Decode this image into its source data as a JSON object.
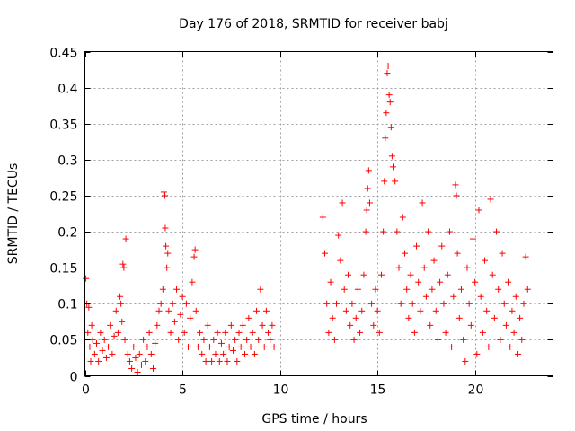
{
  "chart_data": {
    "type": "scatter",
    "title": "Day 176 of 2018, SRMTID for receiver babj",
    "xlabel": "GPS time / hours",
    "ylabel": "SRMTID / TECUs",
    "xlim": [
      0,
      24
    ],
    "ylim": [
      0,
      0.45
    ],
    "xticks": [
      0,
      5,
      10,
      15,
      20
    ],
    "xtick_labels": [
      "0",
      "5",
      "10",
      "15",
      "20"
    ],
    "yticks": [
      0,
      0.05,
      0.1,
      0.15,
      0.2,
      0.25,
      0.3,
      0.35,
      0.4,
      0.45
    ],
    "ytick_labels": [
      "0",
      "0.05",
      "0.1",
      "0.15",
      "0.2",
      "0.25",
      "0.3",
      "0.35",
      "0.4",
      "0.45"
    ],
    "grid": true,
    "marker": "+",
    "color": "#ff0000",
    "series": [
      {
        "name": "SRMTID",
        "points": [
          [
            0.05,
            0.135
          ],
          [
            0.1,
            0.1
          ],
          [
            0.15,
            0.06
          ],
          [
            0.2,
            0.095
          ],
          [
            0.25,
            0.04
          ],
          [
            0.3,
            0.02
          ],
          [
            0.35,
            0.07
          ],
          [
            0.4,
            0.05
          ],
          [
            0.5,
            0.03
          ],
          [
            0.6,
            0.045
          ],
          [
            0.7,
            0.02
          ],
          [
            0.8,
            0.06
          ],
          [
            0.9,
            0.035
          ],
          [
            1.0,
            0.05
          ],
          [
            1.1,
            0.025
          ],
          [
            1.2,
            0.04
          ],
          [
            1.3,
            0.07
          ],
          [
            1.4,
            0.03
          ],
          [
            1.5,
            0.055
          ],
          [
            1.6,
            0.09
          ],
          [
            1.7,
            0.06
          ],
          [
            1.8,
            0.11
          ],
          [
            1.85,
            0.1
          ],
          [
            1.9,
            0.075
          ],
          [
            1.95,
            0.155
          ],
          [
            2.0,
            0.15
          ],
          [
            2.05,
            0.05
          ],
          [
            2.1,
            0.19
          ],
          [
            2.2,
            0.03
          ],
          [
            2.3,
            0.02
          ],
          [
            2.4,
            0.01
          ],
          [
            2.5,
            0.04
          ],
          [
            2.6,
            0.025
          ],
          [
            2.7,
            0.005
          ],
          [
            2.8,
            0.03
          ],
          [
            2.9,
            0.015
          ],
          [
            3.0,
            0.05
          ],
          [
            3.1,
            0.02
          ],
          [
            3.2,
            0.04
          ],
          [
            3.3,
            0.06
          ],
          [
            3.4,
            0.03
          ],
          [
            3.5,
            0.01
          ],
          [
            3.6,
            0.045
          ],
          [
            3.7,
            0.07
          ],
          [
            3.8,
            0.09
          ],
          [
            3.9,
            0.1
          ],
          [
            4.0,
            0.12
          ],
          [
            4.05,
            0.255
          ],
          [
            4.1,
            0.25
          ],
          [
            4.12,
            0.205
          ],
          [
            4.15,
            0.18
          ],
          [
            4.2,
            0.15
          ],
          [
            4.25,
            0.17
          ],
          [
            4.3,
            0.09
          ],
          [
            4.4,
            0.06
          ],
          [
            4.5,
            0.1
          ],
          [
            4.6,
            0.075
          ],
          [
            4.7,
            0.12
          ],
          [
            4.8,
            0.05
          ],
          [
            4.9,
            0.085
          ],
          [
            5.0,
            0.11
          ],
          [
            5.1,
            0.06
          ],
          [
            5.2,
            0.1
          ],
          [
            5.3,
            0.04
          ],
          [
            5.4,
            0.08
          ],
          [
            5.5,
            0.13
          ],
          [
            5.6,
            0.165
          ],
          [
            5.65,
            0.175
          ],
          [
            5.7,
            0.09
          ],
          [
            5.8,
            0.04
          ],
          [
            5.9,
            0.06
          ],
          [
            6.0,
            0.03
          ],
          [
            6.1,
            0.05
          ],
          [
            6.2,
            0.02
          ],
          [
            6.3,
            0.07
          ],
          [
            6.4,
            0.04
          ],
          [
            6.5,
            0.02
          ],
          [
            6.6,
            0.05
          ],
          [
            6.7,
            0.03
          ],
          [
            6.8,
            0.06
          ],
          [
            6.9,
            0.02
          ],
          [
            7.0,
            0.045
          ],
          [
            7.1,
            0.03
          ],
          [
            7.2,
            0.06
          ],
          [
            7.3,
            0.02
          ],
          [
            7.4,
            0.04
          ],
          [
            7.5,
            0.07
          ],
          [
            7.6,
            0.035
          ],
          [
            7.7,
            0.05
          ],
          [
            7.8,
            0.02
          ],
          [
            7.9,
            0.06
          ],
          [
            8.0,
            0.04
          ],
          [
            8.1,
            0.07
          ],
          [
            8.2,
            0.03
          ],
          [
            8.3,
            0.05
          ],
          [
            8.4,
            0.08
          ],
          [
            8.5,
            0.04
          ],
          [
            8.6,
            0.06
          ],
          [
            8.7,
            0.03
          ],
          [
            8.8,
            0.09
          ],
          [
            8.9,
            0.05
          ],
          [
            9.0,
            0.12
          ],
          [
            9.1,
            0.07
          ],
          [
            9.2,
            0.04
          ],
          [
            9.3,
            0.09
          ],
          [
            9.4,
            0.06
          ],
          [
            9.5,
            0.05
          ],
          [
            9.6,
            0.07
          ],
          [
            9.7,
            0.04
          ],
          [
            12.2,
            0.22
          ],
          [
            12.3,
            0.17
          ],
          [
            12.4,
            0.1
          ],
          [
            12.5,
            0.06
          ],
          [
            12.6,
            0.13
          ],
          [
            12.7,
            0.08
          ],
          [
            12.8,
            0.05
          ],
          [
            12.9,
            0.1
          ],
          [
            13.0,
            0.195
          ],
          [
            13.1,
            0.16
          ],
          [
            13.2,
            0.24
          ],
          [
            13.3,
            0.12
          ],
          [
            13.4,
            0.09
          ],
          [
            13.5,
            0.14
          ],
          [
            13.6,
            0.07
          ],
          [
            13.7,
            0.1
          ],
          [
            13.8,
            0.05
          ],
          [
            13.9,
            0.08
          ],
          [
            14.0,
            0.12
          ],
          [
            14.1,
            0.06
          ],
          [
            14.2,
            0.09
          ],
          [
            14.3,
            0.14
          ],
          [
            14.4,
            0.2
          ],
          [
            14.45,
            0.23
          ],
          [
            14.5,
            0.26
          ],
          [
            14.55,
            0.285
          ],
          [
            14.6,
            0.24
          ],
          [
            14.7,
            0.1
          ],
          [
            14.8,
            0.07
          ],
          [
            14.9,
            0.12
          ],
          [
            15.0,
            0.09
          ],
          [
            15.1,
            0.06
          ],
          [
            15.2,
            0.14
          ],
          [
            15.3,
            0.2
          ],
          [
            15.35,
            0.27
          ],
          [
            15.4,
            0.33
          ],
          [
            15.45,
            0.365
          ],
          [
            15.5,
            0.42
          ],
          [
            15.55,
            0.43
          ],
          [
            15.6,
            0.39
          ],
          [
            15.65,
            0.38
          ],
          [
            15.7,
            0.345
          ],
          [
            15.75,
            0.305
          ],
          [
            15.8,
            0.29
          ],
          [
            15.9,
            0.27
          ],
          [
            16.0,
            0.2
          ],
          [
            16.1,
            0.15
          ],
          [
            16.2,
            0.1
          ],
          [
            16.3,
            0.22
          ],
          [
            16.4,
            0.17
          ],
          [
            16.5,
            0.12
          ],
          [
            16.6,
            0.08
          ],
          [
            16.7,
            0.14
          ],
          [
            16.8,
            0.1
          ],
          [
            16.9,
            0.06
          ],
          [
            17.0,
            0.18
          ],
          [
            17.1,
            0.13
          ],
          [
            17.2,
            0.09
          ],
          [
            17.3,
            0.24
          ],
          [
            17.4,
            0.15
          ],
          [
            17.5,
            0.11
          ],
          [
            17.6,
            0.2
          ],
          [
            17.7,
            0.07
          ],
          [
            17.8,
            0.12
          ],
          [
            17.9,
            0.16
          ],
          [
            18.0,
            0.09
          ],
          [
            18.1,
            0.05
          ],
          [
            18.2,
            0.13
          ],
          [
            18.3,
            0.18
          ],
          [
            18.4,
            0.1
          ],
          [
            18.5,
            0.06
          ],
          [
            18.6,
            0.14
          ],
          [
            18.7,
            0.2
          ],
          [
            18.8,
            0.04
          ],
          [
            18.9,
            0.11
          ],
          [
            19.0,
            0.265
          ],
          [
            19.05,
            0.25
          ],
          [
            19.1,
            0.17
          ],
          [
            19.2,
            0.08
          ],
          [
            19.3,
            0.12
          ],
          [
            19.4,
            0.05
          ],
          [
            19.5,
            0.02
          ],
          [
            19.6,
            0.15
          ],
          [
            19.7,
            0.1
          ],
          [
            19.8,
            0.07
          ],
          [
            19.9,
            0.19
          ],
          [
            20.0,
            0.13
          ],
          [
            20.1,
            0.03
          ],
          [
            20.2,
            0.23
          ],
          [
            20.3,
            0.11
          ],
          [
            20.4,
            0.06
          ],
          [
            20.5,
            0.16
          ],
          [
            20.6,
            0.09
          ],
          [
            20.7,
            0.04
          ],
          [
            20.8,
            0.245
          ],
          [
            20.9,
            0.14
          ],
          [
            21.0,
            0.08
          ],
          [
            21.1,
            0.2
          ],
          [
            21.2,
            0.12
          ],
          [
            21.3,
            0.05
          ],
          [
            21.4,
            0.17
          ],
          [
            21.5,
            0.1
          ],
          [
            21.6,
            0.07
          ],
          [
            21.7,
            0.13
          ],
          [
            21.8,
            0.04
          ],
          [
            21.9,
            0.09
          ],
          [
            22.0,
            0.06
          ],
          [
            22.1,
            0.11
          ],
          [
            22.2,
            0.03
          ],
          [
            22.3,
            0.08
          ],
          [
            22.4,
            0.05
          ],
          [
            22.5,
            0.1
          ],
          [
            22.6,
            0.165
          ],
          [
            22.7,
            0.12
          ]
        ]
      }
    ]
  }
}
